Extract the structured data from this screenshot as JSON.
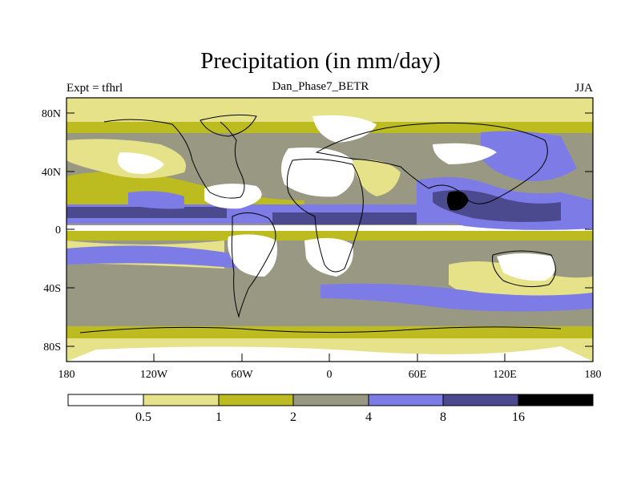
{
  "title": "Precipitation (in mm/day)",
  "subtitle": "Dan_Phase7_BETR",
  "left_string": "Expt = tfhrl",
  "right_string": "JJA",
  "lat_ticks": [
    "80N",
    "40N",
    "0",
    "40S",
    "80S"
  ],
  "lon_ticks": [
    "180",
    "120W",
    "60W",
    "0",
    "60E",
    "120E",
    "180"
  ],
  "colorbar": {
    "colors": [
      "#ffffff",
      "#e6e28a",
      "#bcbb20",
      "#999883",
      "#7d7be6",
      "#4b4a8e",
      "#000000"
    ],
    "labels": [
      "0.5",
      "1",
      "2",
      "4",
      "8",
      "16"
    ]
  },
  "colors": {
    "ocean_tropics": "#7d7be6",
    "dry": "#ffffff",
    "coast": "#000000"
  }
}
